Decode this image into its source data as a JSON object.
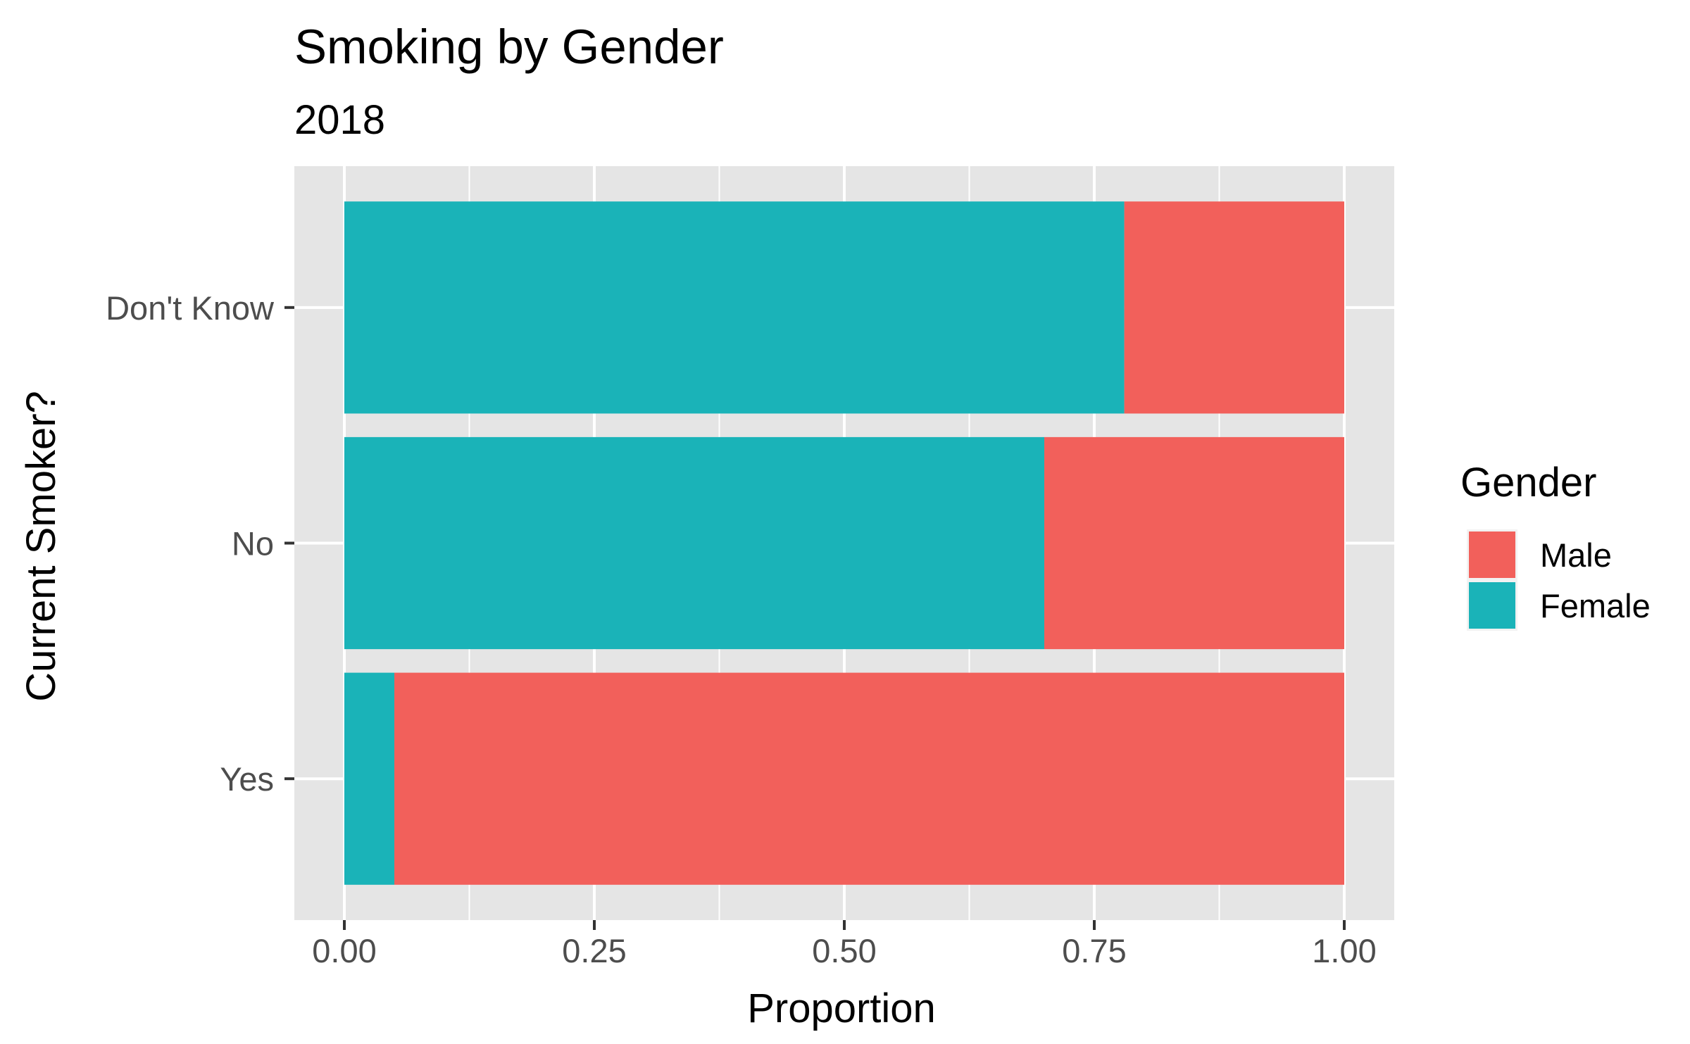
{
  "chart_data": {
    "type": "bar",
    "orientation": "horizontal",
    "stacked": true,
    "title": "Smoking by Gender",
    "subtitle": "2018",
    "xlabel": "Proportion",
    "ylabel": "Current Smoker?",
    "xlim": [
      0,
      1
    ],
    "x_ticks": [
      "0.00",
      "0.25",
      "0.50",
      "0.75",
      "1.00"
    ],
    "categories": [
      "Don't Know",
      "No",
      "Yes"
    ],
    "series": [
      {
        "name": "Female",
        "values": [
          0.78,
          0.7,
          0.05
        ]
      },
      {
        "name": "Male",
        "values": [
          0.22,
          0.3,
          0.95
        ]
      }
    ],
    "legend": {
      "title": "Gender",
      "position": "right",
      "entries": [
        {
          "name": "Male",
          "color": "#F8766D"
        },
        {
          "name": "Female",
          "color": "#00BFC4"
        }
      ]
    },
    "colors": {
      "Male": "#F2605B",
      "Female": "#1AB3B8",
      "panel": "#E5E5E5",
      "grid": "#FFFFFF"
    },
    "grid": true
  }
}
